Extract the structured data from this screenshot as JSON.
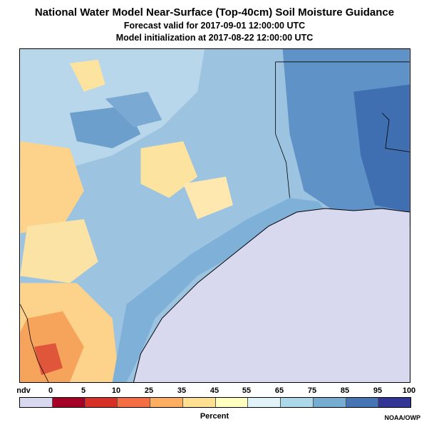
{
  "title": "National Water Model Near-Surface (Top-40cm) Soil Moisture Guidance",
  "forecast_line": "Forecast valid for 2017-09-01 12:00:00 UTC",
  "init_line": "Model initialization at 2017-08-22 12:00:00 UTC",
  "legend": {
    "labels": [
      "ndv",
      "0",
      "5",
      "10",
      "25",
      "35",
      "45",
      "55",
      "65",
      "75",
      "85",
      "95",
      "100"
    ],
    "colors": [
      "#d8d8ee",
      "#a50026",
      "#d73027",
      "#f46d43",
      "#fdae61",
      "#fee090",
      "#ffffbf",
      "#e0f3f8",
      "#abd9e9",
      "#74add1",
      "#4575b4",
      "#313695"
    ],
    "unit": "Percent"
  },
  "credit": "NOAA/OWP",
  "map": {
    "water_color": "#d8d8ee",
    "land_base_color": "#9cc3e0"
  }
}
